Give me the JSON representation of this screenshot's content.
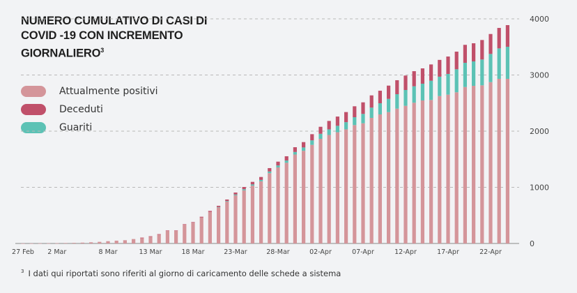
{
  "chart_data": {
    "type": "bar",
    "stacked": true,
    "title": "NUMERO CUMULATIVO DI CASI DI COVID -19  CON INCREMENTO GIORNALIERO",
    "title_footnote_mark": "3",
    "xlabel": "",
    "ylabel": "",
    "ylim": [
      0,
      4000
    ],
    "y_ticks": [
      "0",
      "1000",
      "2000",
      "3000",
      "4000"
    ],
    "grid": "horizontal dashed",
    "legend_position": "left",
    "categories": [
      "27 Feb",
      "28 Feb",
      "29 Feb",
      "1 Mar",
      "2 Mar",
      "3 Mar",
      "4 Mar",
      "5 Mar",
      "6 Mar",
      "7 Mar",
      "8 Mar",
      "9 Mar",
      "10 Mar",
      "11 Mar",
      "12 Mar",
      "13 Mar",
      "14 Mar",
      "15 Mar",
      "16 Mar",
      "17 Mar",
      "18 Mar",
      "19 Mar",
      "20 Mar",
      "21 Mar",
      "22 Mar",
      "23 Mar",
      "24 Mar",
      "25 Mar",
      "26 Mar",
      "27 Mar",
      "28 Mar",
      "29 Mar",
      "30 Mar",
      "31 Mar",
      "1 Apr",
      "2 Apr",
      "3 Apr",
      "4 Apr",
      "5 Apr",
      "6 Apr",
      "7 Apr",
      "8 Apr",
      "9 Apr",
      "10 Apr",
      "11 Apr",
      "12 Apr",
      "13 Apr",
      "14 Apr",
      "15 Apr",
      "16 Apr",
      "17 Apr",
      "18 Apr",
      "19 Apr",
      "20 Apr",
      "21 Apr",
      "22 Apr",
      "23 Apr",
      "24 Apr"
    ],
    "x_ticks": [
      {
        "label": "27 Feb",
        "index": 0
      },
      {
        "label": "2 Mar",
        "index": 4
      },
      {
        "label": "8 Mar",
        "index": 10
      },
      {
        "label": "13 Mar",
        "index": 15
      },
      {
        "label": "18 Mar",
        "index": 20
      },
      {
        "label": "23-Mar",
        "index": 25
      },
      {
        "label": "28-Mar",
        "index": 30
      },
      {
        "label": "02-Apr",
        "index": 35
      },
      {
        "label": "07-Apr",
        "index": 40
      },
      {
        "label": "12-Apr",
        "index": 45
      },
      {
        "label": "17-Apr",
        "index": 50
      },
      {
        "label": "22-Apr",
        "index": 55
      }
    ],
    "series": [
      {
        "name": "Attualmente positivi",
        "color": "#d4959a",
        "values": [
          1,
          1,
          2,
          3,
          5,
          8,
          11,
          15,
          21,
          29,
          41,
          50,
          58,
          79,
          103,
          127,
          164,
          229,
          229,
          338,
          371,
          462,
          562,
          644,
          745,
          857,
          946,
          1030,
          1107,
          1252,
          1354,
          1437,
          1584,
          1650,
          1756,
          1863,
          1932,
          1980,
          2032,
          2108,
          2140,
          2236,
          2298,
          2339,
          2401,
          2451,
          2506,
          2547,
          2555,
          2625,
          2650,
          2692,
          2786,
          2807,
          2816,
          2873,
          2932,
          2932
        ]
      },
      {
        "name": "Guariti",
        "color": "#5cc2b5",
        "values": [
          0,
          0,
          0,
          0,
          0,
          0,
          0,
          0,
          0,
          0,
          0,
          0,
          0,
          0,
          0,
          0,
          0,
          0,
          0,
          0,
          0,
          0,
          0,
          5,
          10,
          15,
          20,
          22,
          25,
          30,
          35,
          40,
          45,
          60,
          80,
          90,
          100,
          115,
          128,
          140,
          167,
          183,
          199,
          236,
          257,
          282,
          293,
          298,
          343,
          345,
          369,
          410,
          431,
          435,
          460,
          502,
          542,
          571
        ]
      },
      {
        "name": "Deceduti",
        "color": "#c0506a",
        "values": [
          0,
          0,
          0,
          0,
          0,
          0,
          0,
          0,
          0,
          0,
          0,
          0,
          0,
          0,
          1,
          1,
          2,
          3,
          3,
          6,
          10,
          14,
          18,
          22,
          28,
          35,
          40,
          45,
          52,
          60,
          68,
          76,
          85,
          95,
          110,
          125,
          150,
          165,
          180,
          195,
          206,
          218,
          223,
          236,
          249,
          257,
          269,
          273,
          290,
          299,
          310,
          314,
          320,
          323,
          347,
          355,
          364,
          385
        ]
      }
    ]
  },
  "legend": [
    {
      "label": "Attualmente positivi",
      "color": "#d4959a"
    },
    {
      "label": "Deceduti",
      "color": "#c0506a"
    },
    {
      "label": "Guariti",
      "color": "#5cc2b5"
    }
  ],
  "footnote": {
    "mark": "3",
    "text": "I dati qui riportati sono riferiti al giorno di caricamento delle schede a sistema"
  }
}
